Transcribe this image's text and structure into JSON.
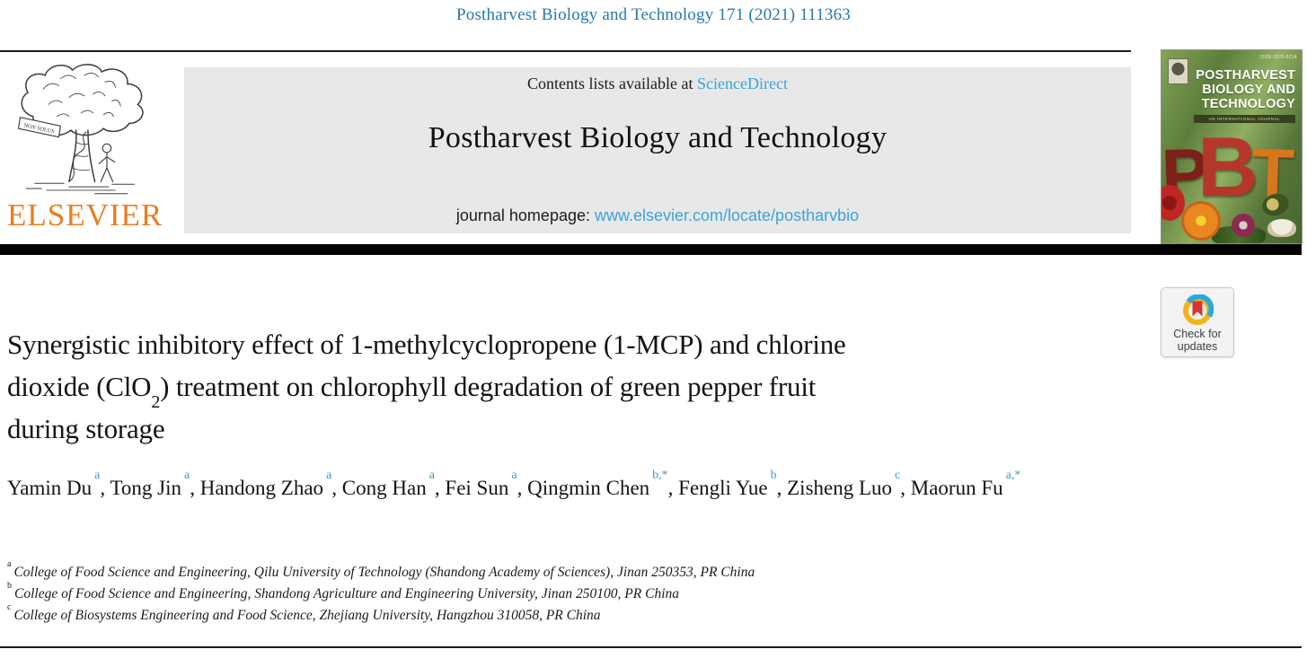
{
  "page": {
    "journal_ref": "Postharvest Biology and Technology 171 (2021) 111363"
  },
  "colors": {
    "ref_blue": "#2878b0",
    "link_blue": "#3ba3dc",
    "elsevier_orange": "#e87e22",
    "superscript_blue": "#3d9ad2",
    "masthead_gray": "#e8e8e8",
    "badge_ring_blue": "#27a9e1",
    "badge_ring_yellow": "#f0b51d",
    "badge_bookmark_red": "#d6332f",
    "cover_green": "#5d7d3c"
  },
  "masthead": {
    "contents_prefix": "Contents lists available at ",
    "sciencedirect_label": "ScienceDirect",
    "journal_title": "Postharvest Biology and Technology",
    "homepage_prefix": "journal homepage: ",
    "homepage_url": "www.elsevier.com/locate/postharvbio",
    "elsevier_wordmark": "ELSEVIER",
    "elsevier_motto": "NON SOLUS"
  },
  "cover": {
    "issn": "ISSN 0925-5214",
    "title_lines": [
      "POSTHARVEST",
      "BIOLOGY AND",
      "TECHNOLOGY"
    ],
    "subtitle": "AN INTERNATIONAL JOURNAL",
    "big_letters": "PBT"
  },
  "badge": {
    "line1": "Check for",
    "line2": "updates"
  },
  "article": {
    "title_lines": [
      {
        "pre": "Synergistic inhibitory effect of 1-methylcyclopropene (1-MCP) and chlorine"
      },
      {
        "pre": "dioxide (ClO",
        "sub": "2",
        "post": ") treatment on chlorophyll degradation of green pepper fruit"
      },
      {
        "pre": "during storage"
      }
    ],
    "authors": [
      {
        "name": "Yamin Du",
        "sup": "a"
      },
      {
        "name": "Tong Jin",
        "sup": "a"
      },
      {
        "name": "Handong Zhao",
        "sup": "a"
      },
      {
        "name": "Cong Han",
        "sup": "a"
      },
      {
        "name": "Fei Sun",
        "sup": "a"
      },
      {
        "name": "Qingmin Chen",
        "sup": "b,*"
      },
      {
        "name": "Fengli Yue",
        "sup": "b"
      },
      {
        "name": "Zisheng Luo",
        "sup": "c"
      },
      {
        "name": "Maorun Fu",
        "sup": "a,*"
      }
    ],
    "affiliations": [
      {
        "sup": "a",
        "text": "College of Food Science and Engineering, Qilu University of Technology (Shandong Academy of Sciences), Jinan 250353, PR China"
      },
      {
        "sup": "b",
        "text": "College of Food Science and Engineering, Shandong Agriculture and Engineering University, Jinan 250100, PR China"
      },
      {
        "sup": "c",
        "text": "College of Biosystems Engineering and Food Science, Zhejiang University, Hangzhou 310058, PR China"
      }
    ]
  }
}
